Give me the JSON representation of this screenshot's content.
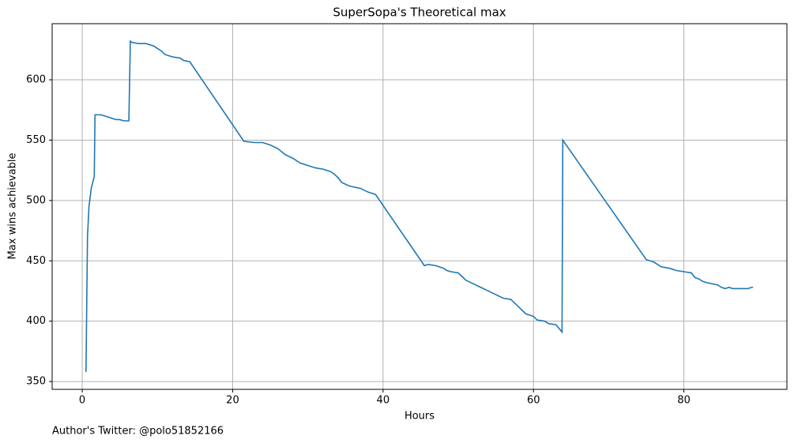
{
  "chart_data": {
    "type": "line",
    "title": "SuperSopa's Theoretical max",
    "xlabel": "Hours",
    "ylabel": "Max wins achievable",
    "footnote": "Author's Twitter: @polo51852166",
    "x": [
      0.5,
      0.7,
      0.9,
      1.2,
      1.6,
      1.7,
      2.5,
      3,
      3.5,
      4,
      4.5,
      5,
      5.5,
      6.2,
      6.4,
      6.6,
      7.5,
      8.5,
      9.5,
      10.5,
      11,
      12,
      13,
      13.5,
      14.3,
      21.5,
      23,
      24,
      25,
      26,
      27,
      28,
      29,
      30,
      31,
      32,
      33,
      33.5,
      34,
      34.5,
      35.5,
      37,
      38,
      39,
      45.5,
      46,
      47,
      48,
      48.5,
      49,
      50,
      50.5,
      51,
      52,
      53,
      54,
      55,
      56,
      57,
      58,
      59,
      60,
      60.5,
      61.5,
      62,
      63,
      63.8,
      63.9,
      75,
      76,
      77,
      78,
      79,
      80,
      81,
      81.5,
      82,
      82.5,
      83,
      84.5,
      85,
      85.5,
      86,
      86.5,
      87,
      87.5,
      88,
      88.5,
      89,
      89.2
    ],
    "series": [
      {
        "name": "Max wins achievable",
        "color": "#1f77b4",
        "values": [
          358,
          470,
          495,
          510,
          520,
          571,
          571,
          570,
          569,
          568,
          567,
          567,
          566,
          566,
          632,
          631,
          630,
          630,
          628,
          624,
          621,
          619,
          618,
          616,
          615,
          549,
          548,
          548,
          546,
          543,
          538,
          535,
          531,
          529,
          527,
          526,
          524,
          522,
          519,
          515,
          512,
          510,
          507,
          505,
          446,
          447,
          446,
          444,
          442,
          441,
          440,
          437,
          434,
          431,
          428,
          425,
          422,
          419,
          418,
          412,
          406,
          404,
          401,
          400,
          398,
          397,
          391,
          550,
          451,
          449,
          445,
          444,
          442,
          441,
          440,
          436,
          435,
          433,
          432,
          430,
          428,
          427,
          428,
          427,
          427,
          427,
          427,
          427,
          428,
          428
        ]
      }
    ],
    "xlim": [
      -4,
      93.7
    ],
    "ylim": [
      343.5,
      646.5
    ],
    "xticks": [
      0,
      20,
      40,
      60,
      80
    ],
    "yticks": [
      350,
      400,
      450,
      500,
      550,
      600
    ],
    "grid": true
  }
}
